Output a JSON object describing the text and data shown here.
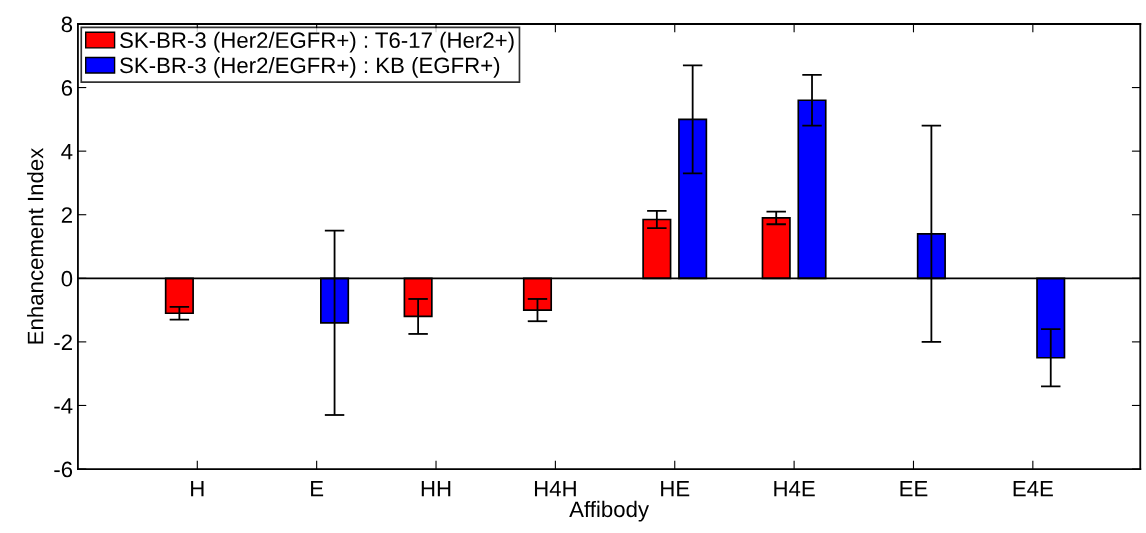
{
  "chart_data": {
    "type": "bar",
    "xlabel": "Affibody",
    "ylabel": "Enhancement Index",
    "categories": [
      "H",
      "E",
      "HH",
      "H4H",
      "HE",
      "H4E",
      "EE",
      "E4E"
    ],
    "series": [
      {
        "name": "SK-BR-3 (Her2/EGFR+) : T6-17 (Her2+)",
        "color": "#ff0000",
        "values": [
          -1.1,
          null,
          -1.2,
          -1.0,
          1.85,
          1.9,
          null,
          null
        ],
        "errors": [
          0.2,
          null,
          0.55,
          0.35,
          0.27,
          0.2,
          null,
          null
        ]
      },
      {
        "name": "SK-BR-3 (Her2/EGFR+) : KB (EGFR+)",
        "color": "#0000ff",
        "values": [
          null,
          -1.4,
          null,
          null,
          5.0,
          5.6,
          1.4,
          -2.5
        ],
        "errors": [
          null,
          2.9,
          null,
          null,
          1.7,
          0.8,
          3.4,
          0.9
        ]
      }
    ],
    "ylim": [
      -6,
      8
    ],
    "yticks": [
      -6,
      -4,
      -2,
      0,
      2,
      4,
      6,
      8
    ],
    "ref_lines": [
      {
        "axis": "y",
        "value": 0,
        "color": "#000000"
      }
    ],
    "legend": "top left",
    "grid": false
  }
}
